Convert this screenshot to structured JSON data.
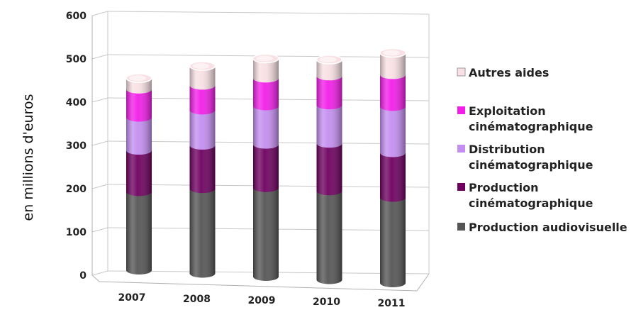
{
  "chart_data": {
    "type": "bar",
    "stacked": true,
    "style": "3d-cylinder",
    "categories": [
      "2007",
      "2008",
      "2009",
      "2010",
      "2011"
    ],
    "series": [
      {
        "name": "Production audiovisuelle",
        "values": [
          190,
          205,
          215,
          215,
          207
        ],
        "color": "#555555"
      },
      {
        "name": "Production cinématographique",
        "values": [
          100,
          105,
          105,
          115,
          108
        ],
        "color": "#6e0060"
      },
      {
        "name": "Distribution cinématographique",
        "values": [
          80,
          85,
          93,
          93,
          112
        ],
        "color": "#c48ef0"
      },
      {
        "name": "Exploitation cinématographique",
        "values": [
          68,
          60,
          67,
          70,
          77
        ],
        "color": "#f21ee8"
      },
      {
        "name": "Autres aides",
        "values": [
          27,
          47,
          48,
          40,
          53
        ],
        "color": "#f8e0e4"
      }
    ],
    "ylabel": "en millions d'euros",
    "yticks": [
      "0",
      "100",
      "200",
      "300",
      "400",
      "500",
      "600"
    ],
    "ylim": [
      0,
      600
    ],
    "grid": true,
    "legend_position": "right",
    "legend": [
      {
        "lines": [
          "Autres aides"
        ],
        "color": "#f8e0e4"
      },
      {
        "lines": [
          "Exploitation",
          "cinématographique"
        ],
        "color": "#f21ee8"
      },
      {
        "lines": [
          "Distribution",
          "cinématographique"
        ],
        "color": "#c48ef0"
      },
      {
        "lines": [
          "Production",
          "cinématographique"
        ],
        "color": "#6e0060"
      },
      {
        "lines": [
          "Production audiovisuelle"
        ],
        "color": "#555555"
      }
    ]
  }
}
